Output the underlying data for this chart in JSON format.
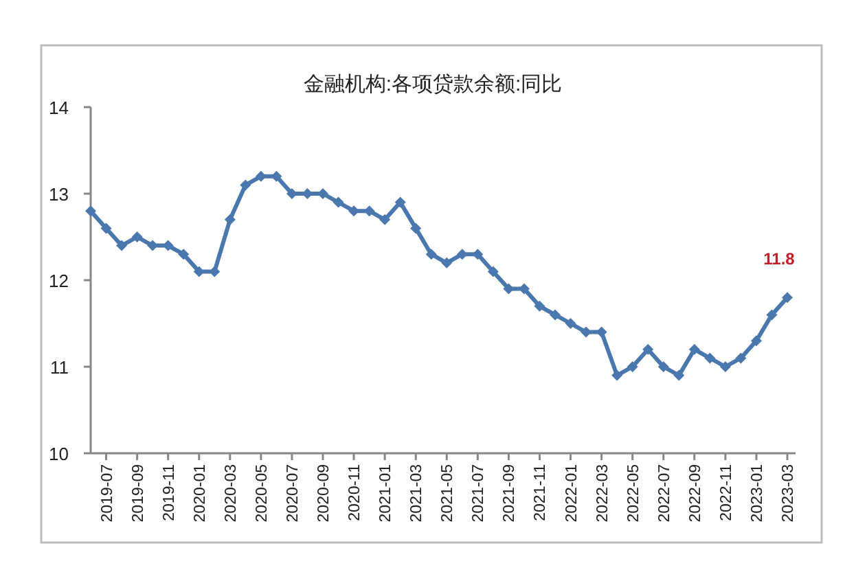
{
  "chart_data": {
    "type": "line",
    "title": "金融机构:各项贷款余额:同比",
    "categories": [
      null,
      "2019-07",
      null,
      "2019-09",
      null,
      "2019-11",
      null,
      "2020-01",
      null,
      "2020-03",
      null,
      "2020-05",
      null,
      "2020-07",
      null,
      "2020-09",
      null,
      "2020-11",
      null,
      "2021-01",
      null,
      "2021-03",
      null,
      "2021-05",
      null,
      "2021-07",
      null,
      "2021-09",
      null,
      "2021-11",
      null,
      "2022-01",
      null,
      "2022-03",
      null,
      "2022-05",
      null,
      "2022-07",
      null,
      "2022-09",
      null,
      "2022-11",
      null,
      "2023-01",
      null,
      "2023-03"
    ],
    "series": [
      {
        "color": "#4a78ae",
        "values": [
          12.8,
          12.6,
          12.4,
          12.5,
          12.4,
          12.4,
          12.3,
          12.1,
          12.1,
          12.7,
          13.1,
          13.2,
          13.2,
          13.0,
          13.0,
          13.0,
          12.9,
          12.8,
          12.8,
          12.7,
          12.9,
          12.6,
          12.3,
          12.2,
          12.3,
          12.3,
          12.1,
          11.9,
          11.9,
          11.7,
          11.6,
          11.5,
          11.4,
          11.4,
          10.9,
          11.0,
          11.2,
          11.0,
          10.9,
          11.2,
          11.1,
          11.0,
          11.1,
          11.3,
          11.6,
          11.8
        ]
      }
    ],
    "ylim": [
      10,
      14
    ],
    "yticks": [
      10,
      11,
      12,
      13,
      14
    ],
    "annotations": [
      {
        "text": "11.8",
        "x": "2023-03",
        "y": 11.8
      }
    ],
    "marker": "diamond",
    "line_style": "solid",
    "grid": false
  }
}
